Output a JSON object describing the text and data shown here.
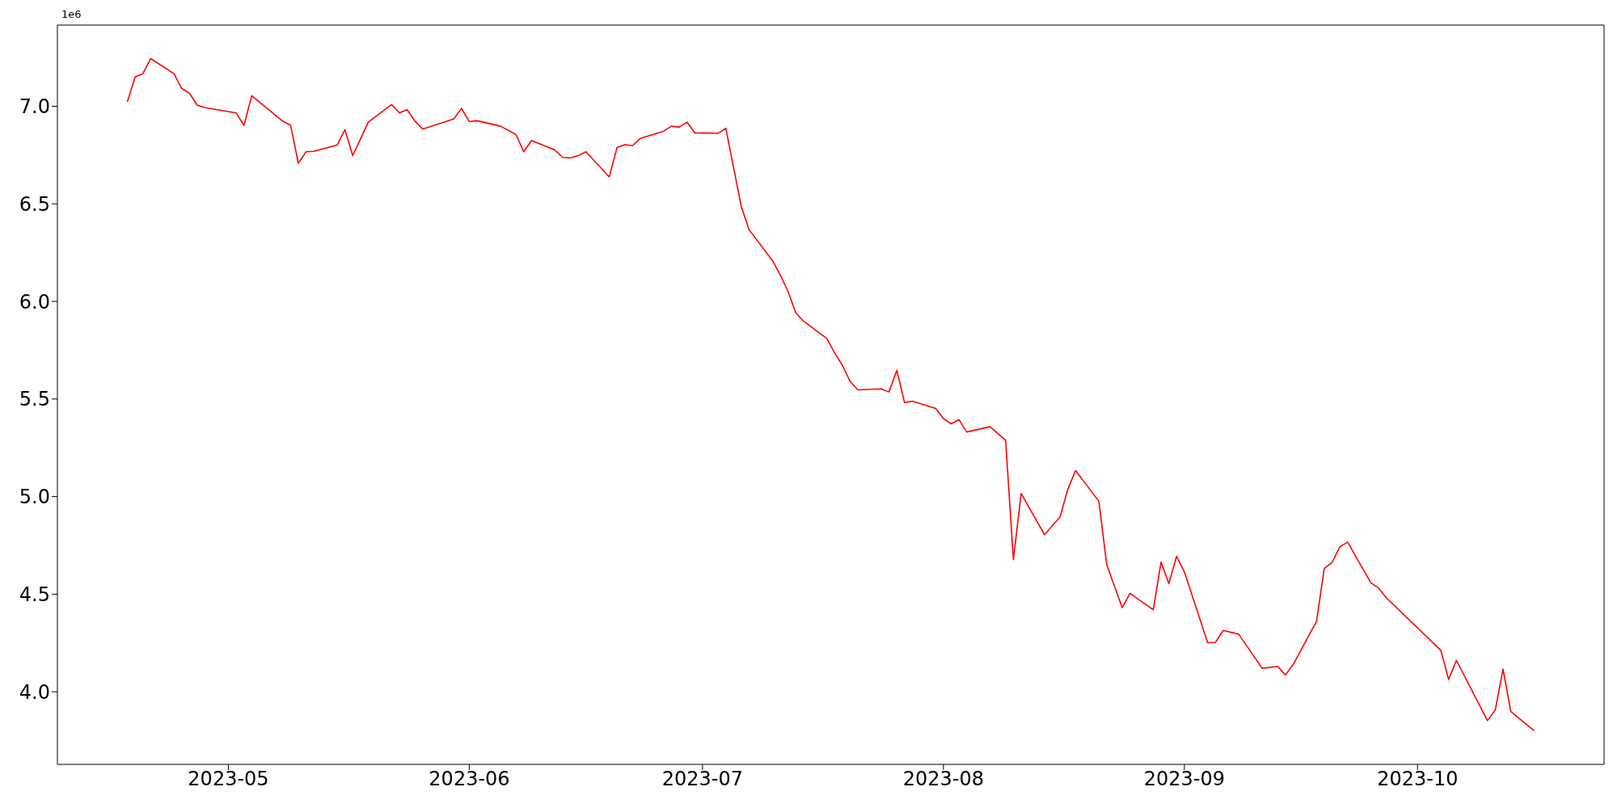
{
  "chart_data": {
    "type": "line",
    "x": [
      "2023-04-18",
      "2023-04-19",
      "2023-04-20",
      "2023-04-21",
      "2023-04-24",
      "2023-04-25",
      "2023-04-26",
      "2023-04-27",
      "2023-04-28",
      "2023-05-02",
      "2023-05-03",
      "2023-05-04",
      "2023-05-08",
      "2023-05-09",
      "2023-05-10",
      "2023-05-11",
      "2023-05-12",
      "2023-05-15",
      "2023-05-16",
      "2023-05-17",
      "2023-05-19",
      "2023-05-22",
      "2023-05-23",
      "2023-05-24",
      "2023-05-25",
      "2023-05-26",
      "2023-05-30",
      "2023-05-31",
      "2023-06-01",
      "2023-06-02",
      "2023-06-05",
      "2023-06-07",
      "2023-06-08",
      "2023-06-09",
      "2023-06-12",
      "2023-06-13",
      "2023-06-14",
      "2023-06-15",
      "2023-06-16",
      "2023-06-19",
      "2023-06-20",
      "2023-06-21",
      "2023-06-22",
      "2023-06-23",
      "2023-06-26",
      "2023-06-27",
      "2023-06-28",
      "2023-06-29",
      "2023-06-30",
      "2023-07-03",
      "2023-07-04",
      "2023-07-06",
      "2023-07-07",
      "2023-07-10",
      "2023-07-11",
      "2023-07-12",
      "2023-07-13",
      "2023-07-14",
      "2023-07-17",
      "2023-07-18",
      "2023-07-19",
      "2023-07-20",
      "2023-07-21",
      "2023-07-24",
      "2023-07-25",
      "2023-07-26",
      "2023-07-27",
      "2023-07-28",
      "2023-07-31",
      "2023-08-01",
      "2023-08-02",
      "2023-08-03",
      "2023-08-04",
      "2023-08-07",
      "2023-08-08",
      "2023-08-09",
      "2023-08-10",
      "2023-08-11",
      "2023-08-14",
      "2023-08-16",
      "2023-08-17",
      "2023-08-18",
      "2023-08-21",
      "2023-08-22",
      "2023-08-24",
      "2023-08-25",
      "2023-08-28",
      "2023-08-29",
      "2023-08-30",
      "2023-08-31",
      "2023-09-01",
      "2023-09-04",
      "2023-09-05",
      "2023-09-06",
      "2023-09-08",
      "2023-09-11",
      "2023-09-13",
      "2023-09-14",
      "2023-09-15",
      "2023-09-18",
      "2023-09-19",
      "2023-09-20",
      "2023-09-21",
      "2023-09-22",
      "2023-09-25",
      "2023-09-26",
      "2023-09-27",
      "2023-10-04",
      "2023-10-05",
      "2023-10-06",
      "2023-10-10",
      "2023-10-11",
      "2023-10-12",
      "2023-10-13",
      "2023-10-16"
    ],
    "series": [
      {
        "color": "#ff0000",
        "values": [
          7.023,
          7.15,
          7.167,
          7.244,
          7.167,
          7.091,
          7.066,
          7.005,
          6.993,
          6.966,
          6.901,
          7.054,
          6.923,
          6.903,
          6.708,
          6.767,
          6.769,
          6.801,
          6.88,
          6.747,
          6.919,
          7.009,
          6.966,
          6.982,
          6.924,
          6.883,
          6.935,
          6.989,
          6.921,
          6.926,
          6.898,
          6.855,
          6.767,
          6.824,
          6.776,
          6.738,
          6.735,
          6.746,
          6.767,
          6.638,
          6.788,
          6.803,
          6.798,
          6.835,
          6.872,
          6.898,
          6.893,
          6.919,
          6.864,
          6.861,
          6.887,
          6.485,
          6.367,
          6.209,
          6.136,
          6.052,
          5.941,
          5.899,
          5.81,
          5.736,
          5.673,
          5.589,
          5.547,
          5.552,
          5.536,
          5.647,
          5.481,
          5.489,
          5.452,
          5.4,
          5.373,
          5.394,
          5.331,
          5.358,
          5.323,
          5.289,
          4.677,
          5.016,
          4.805,
          4.895,
          5.037,
          5.134,
          4.976,
          4.653,
          4.431,
          4.504,
          4.42,
          4.665,
          4.554,
          4.694,
          4.614,
          4.251,
          4.253,
          4.314,
          4.295,
          4.12,
          4.13,
          4.086,
          4.14,
          4.36,
          4.631,
          4.662,
          4.742,
          4.767,
          4.558,
          4.531,
          4.481,
          4.212,
          4.063,
          4.161,
          3.852,
          3.906,
          4.116,
          3.899,
          3.8
        ]
      }
    ],
    "xlim": [
      "2023-04-09",
      "2023-10-25"
    ],
    "xticks": [
      {
        "value": "2023-05-01",
        "label": "2023-05"
      },
      {
        "value": "2023-06-01",
        "label": "2023-06"
      },
      {
        "value": "2023-07-01",
        "label": "2023-07"
      },
      {
        "value": "2023-08-01",
        "label": "2023-08"
      },
      {
        "value": "2023-09-01",
        "label": "2023-09"
      },
      {
        "value": "2023-10-01",
        "label": "2023-10"
      }
    ],
    "ylim": [
      3.628,
      7.416
    ],
    "yticks": [
      {
        "value": 4,
        "label": "4.0"
      },
      {
        "value": 4.5,
        "label": "4.5"
      },
      {
        "value": 5,
        "label": "5.0"
      },
      {
        "value": 5.5,
        "label": "5.5"
      },
      {
        "value": 6,
        "label": "6.0"
      },
      {
        "value": 6.5,
        "label": "6.5"
      },
      {
        "value": 7,
        "label": "7.0"
      }
    ],
    "annotations": [
      "1e6"
    ]
  }
}
